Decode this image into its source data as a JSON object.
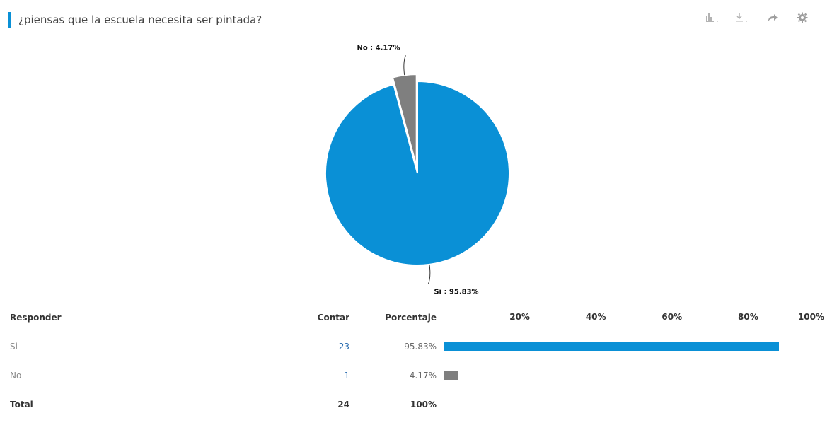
{
  "header": {
    "title": "¿piensas que la escuela necesita ser pintada?",
    "accent": "#0a90d6"
  },
  "toolbar": {
    "icons": [
      "bar-chart-icon",
      "download-icon",
      "share-icon",
      "gear-icon"
    ]
  },
  "chart_data": {
    "type": "pie",
    "slices": [
      {
        "label": "Si",
        "value": 95.83,
        "color": "#0a90d6",
        "data_label": "Si : 95.83%"
      },
      {
        "label": "No",
        "value": 4.17,
        "color": "#7f7f7f",
        "data_label": "No : 4.17%"
      }
    ]
  },
  "table": {
    "headers": {
      "responder": "Responder",
      "contar": "Contar",
      "porcentaje": "Porcentaje"
    },
    "ticks": [
      "20%",
      "40%",
      "60%",
      "80%",
      "100%"
    ],
    "rows": [
      {
        "label": "Si",
        "count": "23",
        "percent": "95.83%",
        "value": 95.83,
        "color": "#0a90d6"
      },
      {
        "label": "No",
        "count": "1",
        "percent": "4.17%",
        "value": 4.17,
        "color": "#7f7f7f"
      }
    ],
    "total": {
      "label": "Total",
      "count": "24",
      "percent": "100%"
    }
  }
}
